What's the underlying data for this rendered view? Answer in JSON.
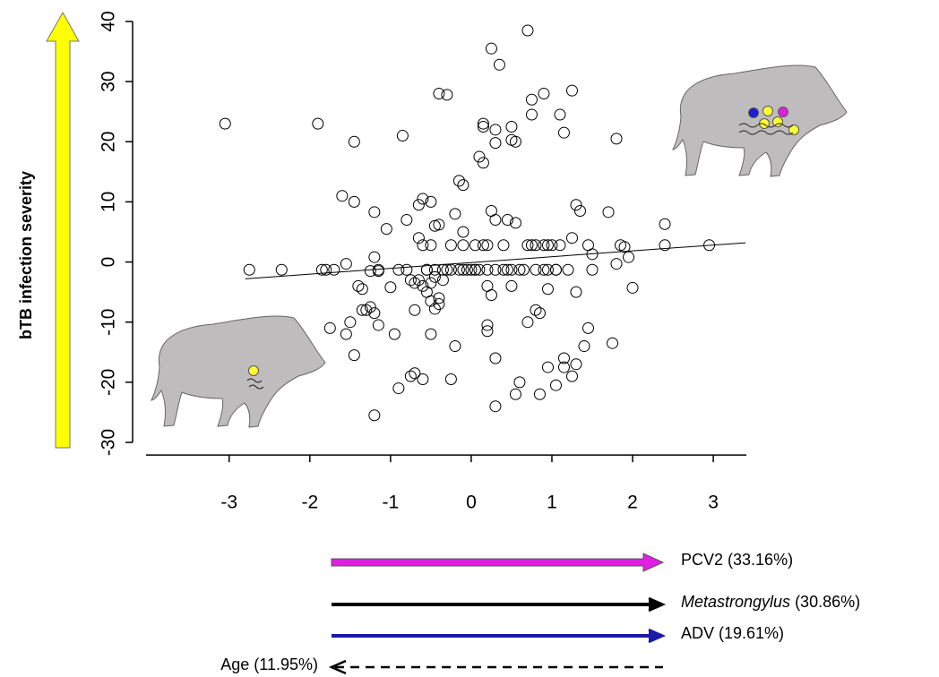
{
  "chart_data": {
    "type": "scatter",
    "ylabel": "bTB infection severity",
    "xlim": [
      -4.03,
      3.41
    ],
    "ylim": [
      -32.1,
      40.5
    ],
    "xticks": [
      -3,
      -2,
      -1,
      0,
      1,
      2,
      3
    ],
    "yticks": [
      -30,
      -20,
      -10,
      0,
      10,
      20,
      30,
      40
    ],
    "point_color": "#000000",
    "x": [
      -3.05,
      -2.75,
      -2.35,
      -1.9,
      -1.85,
      -1.8,
      -1.7,
      -1.75,
      -1.6,
      -1.55,
      -1.55,
      -1.5,
      -1.45,
      -1.45,
      -1.45,
      -1.4,
      -1.35,
      -1.35,
      -1.3,
      -1.25,
      -1.25,
      -1.2,
      -1.2,
      -1.2,
      -1.15,
      -1.2,
      -1.15,
      -1.05,
      -1.0,
      -0.95,
      -0.9,
      -0.85,
      -0.8,
      -0.8,
      -0.75,
      -0.7,
      -0.75,
      -0.7,
      -0.7,
      -0.65,
      -0.65,
      -0.6,
      -0.6,
      -0.6,
      -0.55,
      -0.55,
      -0.5,
      -0.5,
      -0.5,
      -0.45,
      -0.45,
      -0.45,
      -0.4,
      -0.4,
      -0.4,
      -0.35,
      -0.3,
      -0.3,
      -0.25,
      -0.25,
      -0.2,
      -0.2,
      -0.15,
      -0.15,
      -0.1,
      -0.1,
      -0.1,
      -0.05,
      0,
      0.05,
      0.05,
      0.1,
      0.1,
      0.15,
      0.15,
      0.15,
      0.2,
      0.2,
      0.2,
      0.2,
      0.25,
      0.25,
      0.25,
      0.3,
      0.3,
      0.3,
      0.3,
      0.3,
      0.35,
      0.4,
      0.4,
      0.45,
      0.5,
      0.5,
      0.5,
      0.5,
      0.55,
      0.55,
      0.55,
      0.6,
      0.65,
      0.7,
      0.7,
      0.75,
      0.75,
      0.75,
      0.8,
      0.85,
      0.85,
      0.9,
      0.9,
      0.95,
      0.95,
      0.95,
      1.0,
      1.05,
      1.05,
      1.1,
      1.1,
      1.15,
      1.15,
      1.15,
      1.2,
      1.25,
      1.25,
      1.25,
      1.3,
      1.3,
      1.3,
      1.35,
      1.4,
      1.45,
      1.45,
      1.5,
      1.5,
      1.7,
      1.75,
      1.8,
      1.8,
      1.85,
      1.9,
      1.95,
      2.0,
      2.4,
      2.4,
      2.95,
      -0.9,
      -0.35,
      0.6,
      0.8,
      -0.55,
      0.05,
      0.3,
      0.9,
      1.05,
      -0.6,
      0.7,
      0.8,
      0.95,
      -0.25,
      -0.1,
      0.45,
      -0.65,
      -0.5,
      -0.45,
      0.2,
      0.15,
      -0.5,
      -0.4,
      -1.15
    ],
    "y": [
      23,
      -1.3,
      -1.3,
      23,
      -1.3,
      -1.3,
      -1.3,
      -11,
      11,
      -0.3,
      -12,
      -10,
      10,
      20,
      -15.5,
      -4,
      -4.5,
      -8,
      -8,
      -7.5,
      -1.5,
      8.3,
      0.8,
      -8.5,
      -10.5,
      -25.5,
      -1.5,
      5.5,
      -4.2,
      -12,
      -21,
      21,
      -1.3,
      7,
      -19,
      -18.5,
      -3,
      -3.5,
      -8,
      9.5,
      4,
      10.5,
      -4,
      -19.5,
      -5,
      -1.3,
      10,
      2.8,
      -12,
      6,
      -7.8,
      -1.3,
      28,
      6.2,
      -6,
      -3,
      27.8,
      -1.3,
      2.8,
      -19.5,
      8,
      -14,
      13.5,
      -1.3,
      12.8,
      5,
      2.8,
      -1.3,
      -1.3,
      2.8,
      -1.3,
      17.5,
      -1.3,
      23,
      22.5,
      16.5,
      2.8,
      -4,
      -10.5,
      -11.5,
      35.5,
      8.5,
      -5.5,
      22,
      19.8,
      7,
      -16,
      -24,
      32.8,
      2.8,
      -1.3,
      7,
      22.5,
      20.3,
      -1.3,
      -4,
      20,
      6.5,
      -22,
      -20,
      -1.3,
      38.5,
      -10,
      27,
      24.5,
      2.8,
      -8,
      -8.5,
      -22,
      28,
      2.8,
      -4.5,
      -17.5,
      -1.3,
      2.8,
      -20.5,
      -1.3,
      24.5,
      2.8,
      21.5,
      -16,
      -17.5,
      -1.3,
      28.5,
      4,
      -19,
      -17,
      -5,
      9.5,
      8.5,
      -14,
      2.8,
      -11,
      1.3,
      -1.3,
      8.3,
      -13.5,
      20.5,
      -0.3,
      2.8,
      2.5,
      0.8,
      -4.3,
      6.3,
      2.8,
      2.8,
      -1.3,
      -1.3,
      -1.3,
      -1.3,
      -1.3,
      -1.3,
      -1.3,
      -1.3,
      -1.3,
      2.8,
      2.8,
      2.8,
      2.8,
      -1.3,
      -1.3,
      -1.3,
      -3,
      -3.5,
      -2.5,
      -1.3,
      2.8,
      -6.5,
      -7,
      -1.3
    ],
    "trend": {
      "x": [
        -2.8,
        3.4
      ],
      "y": [
        -2.8,
        3.2
      ],
      "color": "#000000"
    }
  },
  "effects": [
    {
      "label": "PCV2",
      "share": "(33.16%)",
      "color": "#e11fe1",
      "style": "block",
      "direction": "right"
    },
    {
      "label": "Metastrongylus",
      "share": "(30.86%)",
      "color": "#000000",
      "style": "solid",
      "direction": "right",
      "italic": true
    },
    {
      "label": "ADV",
      "share": "(19.61%)",
      "color": "#1a1aa8",
      "style": "solid",
      "direction": "right"
    },
    {
      "label": "Age",
      "share": "(11.95%)",
      "color": "#000000",
      "style": "dashed",
      "direction": "left"
    }
  ]
}
